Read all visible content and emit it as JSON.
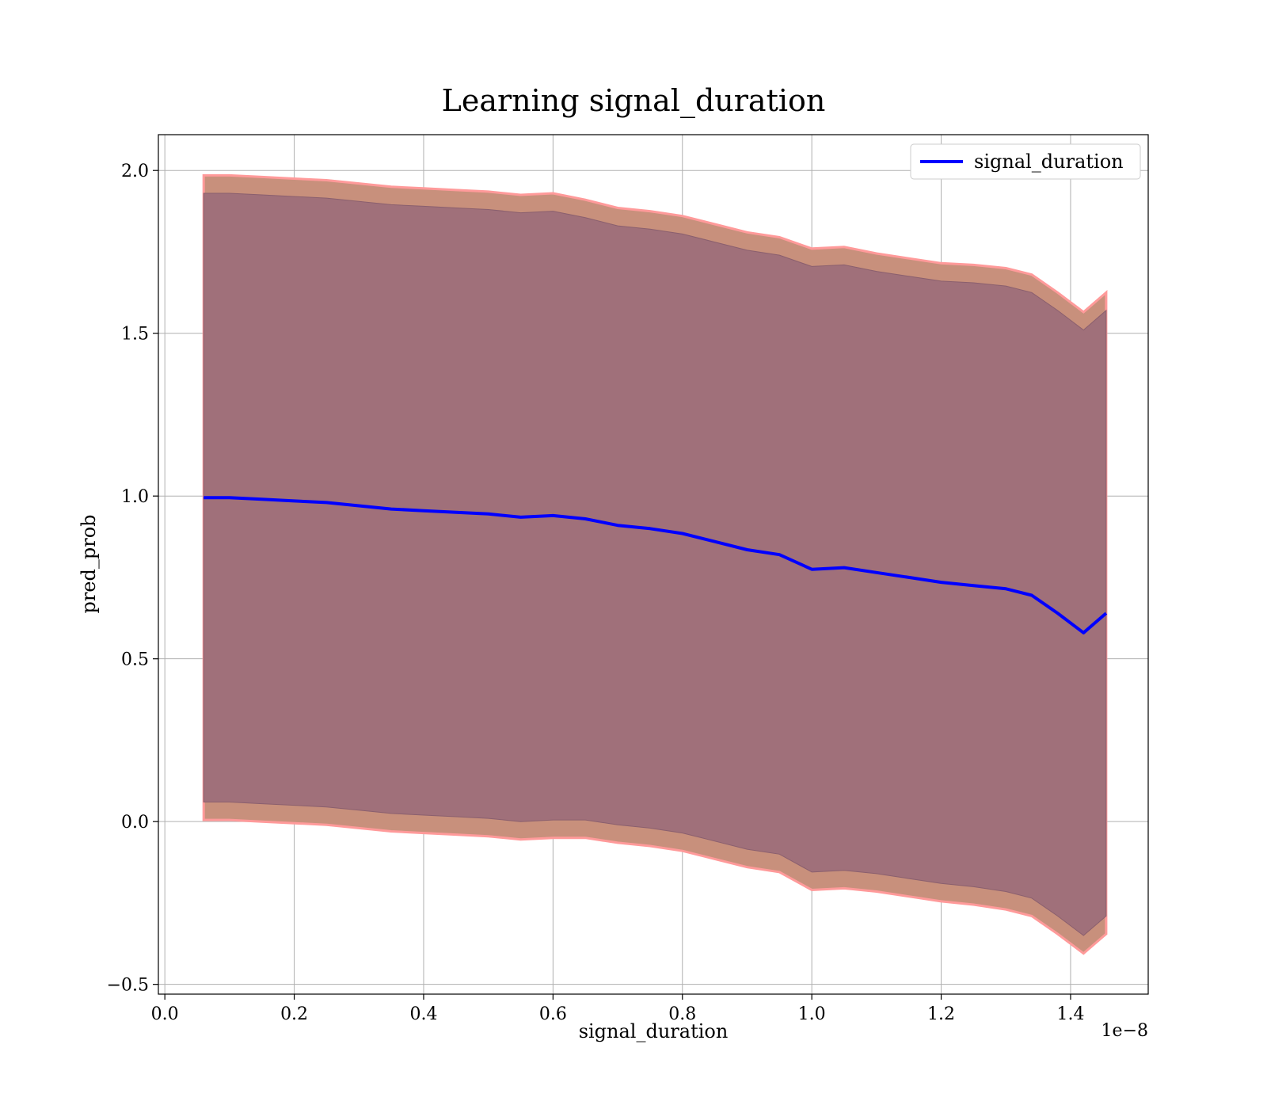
{
  "chart_data": {
    "type": "line",
    "title": "Learning signal_duration",
    "xlabel": "signal_duration",
    "ylabel": "pred_prob",
    "x_offset_text": "1e−8",
    "xlim": [
      -0.01,
      1.52
    ],
    "ylim": [
      -0.53,
      2.11
    ],
    "xticks": [
      0.0,
      0.2,
      0.4,
      0.6,
      0.8,
      1.0,
      1.2,
      1.4
    ],
    "xtick_labels": [
      "0.0",
      "0.2",
      "0.4",
      "0.6",
      "0.8",
      "1.0",
      "1.2",
      "1.4"
    ],
    "yticks": [
      -0.5,
      0.0,
      0.5,
      1.0,
      1.5,
      2.0
    ],
    "ytick_labels": [
      "−0.5",
      "0.0",
      "0.5",
      "1.0",
      "1.5",
      "2.0"
    ],
    "grid": true,
    "legend_position": "top-right",
    "colors": {
      "line": "#0000ff",
      "outer_band": "#c8907c",
      "inner_band": "#a0707a",
      "band_edge": "#ff9a9a"
    },
    "series": [
      {
        "name": "signal_duration",
        "x": [
          0.06,
          0.1,
          0.15,
          0.2,
          0.25,
          0.3,
          0.35,
          0.4,
          0.45,
          0.5,
          0.55,
          0.6,
          0.65,
          0.7,
          0.75,
          0.8,
          0.85,
          0.9,
          0.95,
          1.0,
          1.05,
          1.1,
          1.15,
          1.2,
          1.25,
          1.3,
          1.34,
          1.38,
          1.42,
          1.455
        ],
        "y": [
          0.995,
          0.995,
          0.99,
          0.985,
          0.98,
          0.97,
          0.96,
          0.955,
          0.95,
          0.945,
          0.935,
          0.94,
          0.93,
          0.91,
          0.9,
          0.885,
          0.86,
          0.835,
          0.82,
          0.775,
          0.78,
          0.765,
          0.75,
          0.735,
          0.725,
          0.715,
          0.695,
          0.64,
          0.58,
          0.64
        ],
        "outer_upper": [
          1.985,
          1.985,
          1.98,
          1.975,
          1.97,
          1.96,
          1.95,
          1.945,
          1.94,
          1.935,
          1.925,
          1.93,
          1.91,
          1.885,
          1.875,
          1.86,
          1.835,
          1.81,
          1.795,
          1.76,
          1.765,
          1.745,
          1.73,
          1.715,
          1.71,
          1.7,
          1.68,
          1.625,
          1.565,
          1.625
        ],
        "outer_lower": [
          0.005,
          0.005,
          0.0,
          -0.005,
          -0.01,
          -0.02,
          -0.03,
          -0.035,
          -0.04,
          -0.045,
          -0.055,
          -0.05,
          -0.05,
          -0.065,
          -0.075,
          -0.09,
          -0.115,
          -0.14,
          -0.155,
          -0.21,
          -0.205,
          -0.215,
          -0.23,
          -0.245,
          -0.255,
          -0.27,
          -0.29,
          -0.345,
          -0.405,
          -0.345
        ],
        "inner_upper": [
          1.93,
          1.93,
          1.925,
          1.92,
          1.915,
          1.905,
          1.895,
          1.89,
          1.885,
          1.88,
          1.87,
          1.875,
          1.855,
          1.83,
          1.82,
          1.805,
          1.78,
          1.755,
          1.74,
          1.705,
          1.71,
          1.69,
          1.675,
          1.66,
          1.655,
          1.645,
          1.625,
          1.57,
          1.51,
          1.57
        ],
        "inner_lower": [
          0.06,
          0.06,
          0.055,
          0.05,
          0.045,
          0.035,
          0.025,
          0.02,
          0.015,
          0.01,
          0.0,
          0.005,
          0.005,
          -0.01,
          -0.02,
          -0.035,
          -0.06,
          -0.085,
          -0.1,
          -0.155,
          -0.15,
          -0.16,
          -0.175,
          -0.19,
          -0.2,
          -0.215,
          -0.235,
          -0.29,
          -0.35,
          -0.29
        ]
      }
    ]
  }
}
